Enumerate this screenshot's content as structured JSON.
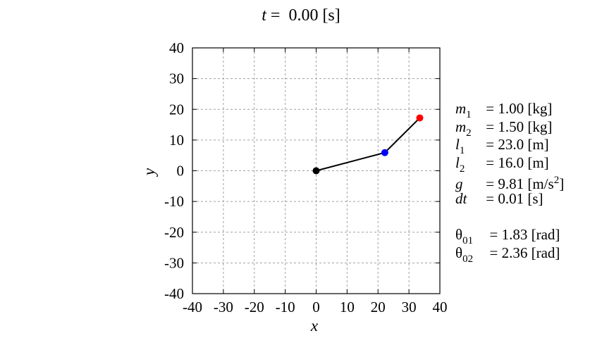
{
  "title": {
    "var": "t",
    "eq": "=",
    "value": "0.00",
    "unit": "[s]"
  },
  "params": [
    {
      "sym": "m",
      "sub": "1",
      "value": "= 1.00",
      "unit": "[kg]"
    },
    {
      "sym": "m",
      "sub": "2",
      "value": "= 1.50",
      "unit": "[kg]"
    },
    {
      "sym": "l",
      "sub": "1",
      "value": "= 23.0",
      "unit": "[m]"
    },
    {
      "sym": "l",
      "sub": "2",
      "value": "= 16.0",
      "unit": "[m]"
    },
    {
      "sym": "g",
      "sub": "",
      "value": "= 9.81",
      "unit": "[m/s",
      "sup": "2",
      "unit_end": "]"
    },
    {
      "sym": "dt",
      "sub": "",
      "value": "= 0.01",
      "unit": "[s]"
    }
  ],
  "initial": [
    {
      "sym": "θ",
      "sub": "01",
      "value": "= 1.83",
      "unit": "[rad]"
    },
    {
      "sym": "θ",
      "sub": "02",
      "value": "= 2.36",
      "unit": "[rad]"
    }
  ],
  "chart_data": {
    "type": "line",
    "title": "t = 0.00 [s]",
    "xlabel": "x",
    "ylabel": "y",
    "xlim": [
      -40,
      40
    ],
    "ylim": [
      -40,
      40
    ],
    "xticks": [
      -40,
      -30,
      -20,
      -10,
      0,
      10,
      20,
      30,
      40
    ],
    "yticks": [
      -40,
      -30,
      -20,
      -10,
      0,
      10,
      20,
      30,
      40
    ],
    "grid": true,
    "series": [
      {
        "name": "pendulum-rod",
        "x": [
          0,
          22.2,
          33.5
        ],
        "y": [
          0,
          5.9,
          17.2
        ],
        "color": "#000000"
      }
    ],
    "points": [
      {
        "name": "pivot",
        "x": 0,
        "y": 0,
        "color": "#000000"
      },
      {
        "name": "mass-1",
        "x": 22.2,
        "y": 5.9,
        "color": "#0000ff"
      },
      {
        "name": "mass-2",
        "x": 33.5,
        "y": 17.2,
        "color": "#ff0000"
      }
    ]
  }
}
